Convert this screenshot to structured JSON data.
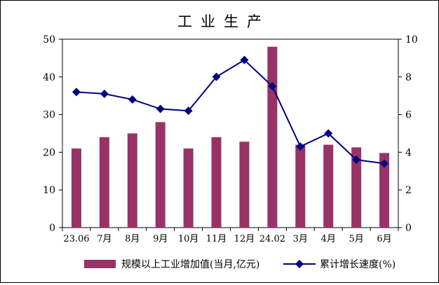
{
  "chart_data": {
    "type": "bar+line",
    "title": "工业生产",
    "categories": [
      "23.06",
      "7月",
      "8月",
      "9月",
      "10月",
      "11月",
      "12月",
      "24.02",
      "3月",
      "4月",
      "5月",
      "6月"
    ],
    "series": [
      {
        "name": "规模以上工业增加值(当月,亿元)",
        "type": "bar",
        "axis": "left",
        "color": "#993366",
        "values": [
          21.0,
          24.0,
          25.0,
          28.0,
          21.0,
          24.0,
          22.8,
          48.0,
          22.0,
          22.0,
          21.3,
          19.8
        ]
      },
      {
        "name": "累计增长速度(%)",
        "type": "line",
        "axis": "right",
        "color": "#000080",
        "marker": "diamond",
        "values": [
          7.2,
          7.1,
          6.8,
          6.3,
          6.2,
          8.0,
          8.9,
          7.5,
          4.3,
          5.0,
          3.6,
          3.4
        ]
      }
    ],
    "y_left": {
      "min": 0,
      "max": 50,
      "ticks": [
        "0",
        "10",
        "20",
        "30",
        "40",
        "50"
      ]
    },
    "y_right": {
      "min": 0,
      "max": 10,
      "ticks": [
        "0",
        "2",
        "4",
        "6",
        "8",
        "10"
      ]
    },
    "grid": false,
    "legend_position": "bottom"
  }
}
